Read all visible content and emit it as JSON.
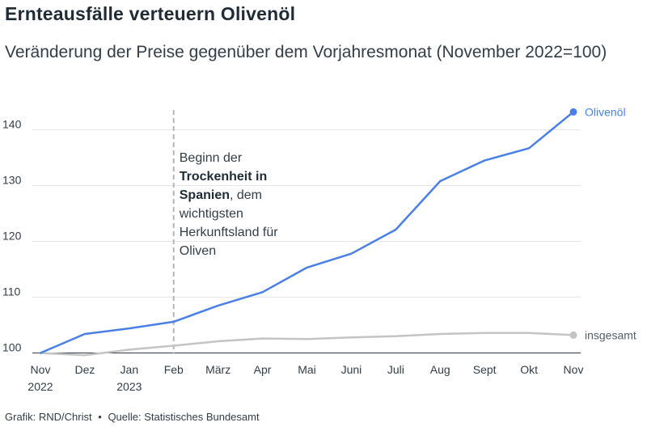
{
  "title": "Ernteausfälle verteuern Olivenöl",
  "subtitle": "Veränderung der Preise gegenüber dem Vorjahresmonat (November 2022=100)",
  "footer": {
    "credit": "Grafik: RND/Christ",
    "separator": "•",
    "source": "Quelle: Statistisches Bundesamt"
  },
  "annotation": {
    "lines": [
      [
        {
          "text": "Beginn der",
          "bold": false
        }
      ],
      [
        {
          "text": "Trockenheit in",
          "bold": true
        }
      ],
      [
        {
          "text": "Spanien",
          "bold": true
        },
        {
          "text": ", dem",
          "bold": false
        }
      ],
      [
        {
          "text": "wichtigsten",
          "bold": false
        }
      ],
      [
        {
          "text": "Herkunftsland für",
          "bold": false
        }
      ],
      [
        {
          "text": "Oliven",
          "bold": false
        }
      ]
    ],
    "marker_index": 3
  },
  "colors": {
    "olive": "#4a7fe8",
    "total": "#c4c4c4",
    "grid": "#e6e6e6",
    "marker": "#b5b5b5"
  },
  "chart_data": {
    "type": "line",
    "categories": [
      [
        "Nov",
        "2022"
      ],
      [
        "Dez"
      ],
      [
        "Jan",
        "2023"
      ],
      [
        "Feb"
      ],
      [
        "März"
      ],
      [
        "Apr"
      ],
      [
        "Mai"
      ],
      [
        "Juni"
      ],
      [
        "Juli"
      ],
      [
        "Aug"
      ],
      [
        "Sept"
      ],
      [
        "Okt"
      ],
      [
        "Nov"
      ]
    ],
    "series": [
      {
        "name": "Olivenöl",
        "color": "#4a7fe8",
        "values": [
          100,
          103.4,
          104.4,
          105.6,
          108.5,
          110.9,
          115.3,
          117.8,
          122.1,
          130.8,
          134.5,
          136.7,
          143.2
        ]
      },
      {
        "name": "insgesamt",
        "color": "#c4c4c4",
        "values": [
          100,
          99.6,
          100.6,
          101.3,
          102.1,
          102.6,
          102.5,
          102.8,
          103.0,
          103.4,
          103.6,
          103.6,
          103.2
        ]
      }
    ],
    "yticks": [
      100,
      110,
      120,
      130,
      140
    ],
    "ylim": [
      100,
      145
    ],
    "grid": true,
    "labels_at_line_end": true
  }
}
